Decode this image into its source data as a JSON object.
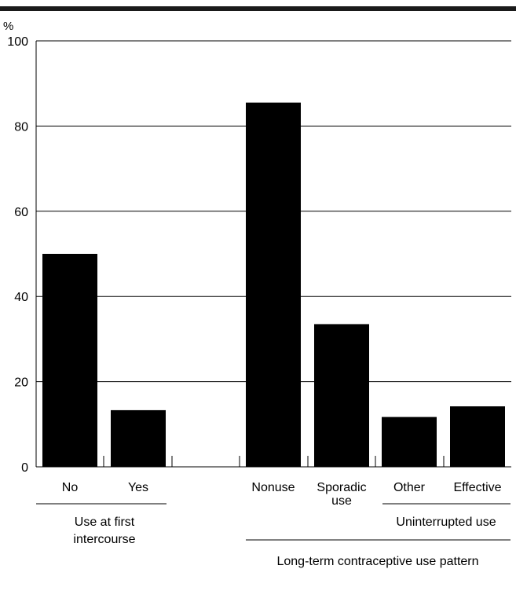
{
  "chart_data": {
    "type": "bar",
    "title": "",
    "y_unit": "%",
    "ylim": [
      0,
      100
    ],
    "yticks": [
      0,
      20,
      40,
      60,
      80,
      100
    ],
    "grid": true,
    "groups": [
      {
        "label_lines": [
          "Use at first",
          "intercourse"
        ],
        "categories": [
          {
            "label_lines": [
              "No"
            ],
            "value": 50
          },
          {
            "label_lines": [
              "Yes"
            ],
            "value": 13.3
          }
        ]
      },
      {
        "label_lines": [
          "Long-term contraceptive use pattern"
        ],
        "categories": [
          {
            "label_lines": [
              "Nonuse"
            ],
            "value": 85.5
          },
          {
            "label_lines": [
              "Sporadic",
              "use"
            ],
            "value": 33.5
          },
          {
            "label_lines": [
              "Other"
            ],
            "value": 11.7
          },
          {
            "label_lines": [
              "Effective"
            ],
            "value": 14.2
          }
        ],
        "subgroup": {
          "label_lines": [
            "Uninterrupted use"
          ],
          "categories": [
            "Other",
            "Effective"
          ]
        }
      }
    ],
    "colors": {
      "bar": "#000000",
      "grid": "#000000",
      "background": "#ffffff"
    }
  }
}
